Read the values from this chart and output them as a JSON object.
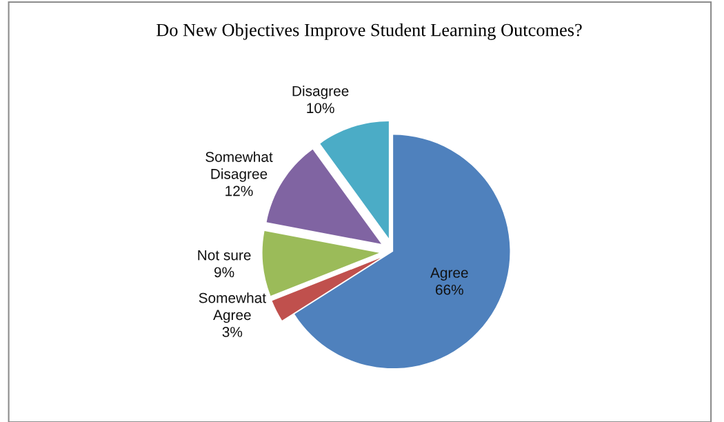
{
  "chart_data": {
    "type": "pie",
    "title": "Do New Objectives Improve Student Learning Outcomes?",
    "categories": [
      "Agree",
      "Somewhat\nAgree",
      "Not sure",
      "Somewhat\nDisagree",
      "Disagree"
    ],
    "values": [
      66,
      3,
      9,
      12,
      10
    ],
    "colors": [
      "#4f81bd",
      "#c0504d",
      "#9bbb59",
      "#8064a2",
      "#4bacc6"
    ],
    "value_labels": [
      "66%",
      "3%",
      "9%",
      "12%",
      "10%"
    ],
    "legend": false
  }
}
